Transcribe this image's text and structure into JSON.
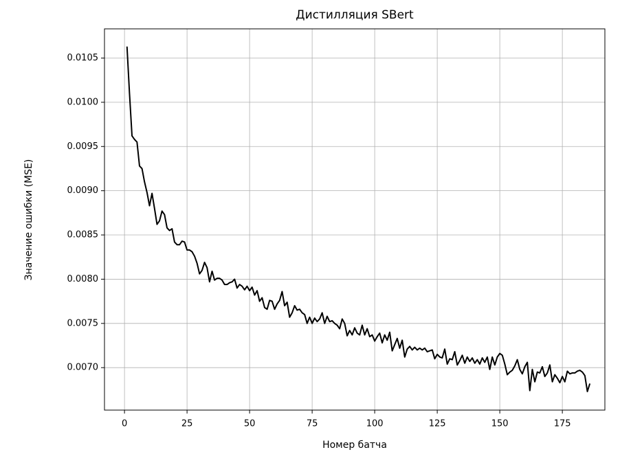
{
  "chart_data": {
    "type": "line",
    "title": "Дистилляция SBert",
    "x_label": "Номер батча",
    "y_label": "Значение ошибки (MSE)",
    "xlim": [
      -8,
      192
    ],
    "ylim": [
      0.00652,
      0.01083
    ],
    "xticks": [
      0,
      25,
      50,
      75,
      100,
      125,
      150,
      175
    ],
    "yticks": [
      {
        "value": 0.007,
        "label": "0.0070"
      },
      0.0075,
      {
        "value": 0.008,
        "label": "0.0080"
      },
      0.0085,
      {
        "value": 0.009,
        "label": "0.0090"
      },
      0.0095,
      {
        "value": 0.01,
        "label": "0.0100"
      },
      0.0105
    ],
    "grid": true,
    "series": [
      {
        "color": "#000000",
        "x": [
          1,
          2,
          3,
          4,
          5,
          6,
          7,
          8,
          9,
          10,
          11,
          12,
          13,
          14,
          15,
          16,
          17,
          18,
          19,
          20,
          21,
          22,
          23,
          24,
          25,
          26,
          27,
          28,
          29,
          30,
          31,
          32,
          33,
          34,
          35,
          36,
          37,
          38,
          39,
          40,
          41,
          42,
          43,
          44,
          45,
          46,
          47,
          48,
          49,
          50,
          51,
          52,
          53,
          54,
          55,
          56,
          57,
          58,
          59,
          60,
          61,
          62,
          63,
          64,
          65,
          66,
          67,
          68,
          69,
          70,
          71,
          72,
          73,
          74,
          75,
          76,
          77,
          78,
          79,
          80,
          81,
          82,
          83,
          84,
          85,
          86,
          87,
          88,
          89,
          90,
          91,
          92,
          93,
          94,
          95,
          96,
          97,
          98,
          99,
          100,
          101,
          102,
          103,
          104,
          105,
          106,
          107,
          108,
          109,
          110,
          111,
          112,
          113,
          114,
          115,
          116,
          117,
          118,
          119,
          120,
          121,
          122,
          123,
          124,
          125,
          126,
          127,
          128,
          129,
          130,
          131,
          132,
          133,
          134,
          135,
          136,
          137,
          138,
          139,
          140,
          141,
          142,
          143,
          144,
          145,
          146,
          147,
          148,
          149,
          150,
          151,
          152,
          153,
          154,
          155,
          156,
          157,
          158,
          159,
          160,
          161,
          162,
          163,
          164,
          165,
          166,
          167,
          168,
          169,
          170,
          171,
          172,
          173,
          174,
          175,
          176,
          177,
          178,
          179,
          180,
          181,
          182,
          183,
          184,
          185,
          186
        ],
        "values": [
          0.01063,
          0.0101,
          0.00962,
          0.00958,
          0.00955,
          0.00928,
          0.00925,
          0.0091,
          0.00898,
          0.00883,
          0.00897,
          0.0088,
          0.00862,
          0.00866,
          0.00877,
          0.00873,
          0.00858,
          0.00855,
          0.00857,
          0.00842,
          0.00839,
          0.00839,
          0.00843,
          0.00842,
          0.00833,
          0.00833,
          0.00831,
          0.00826,
          0.00818,
          0.00806,
          0.0081,
          0.00819,
          0.00813,
          0.00797,
          0.00809,
          0.00799,
          0.00801,
          0.00801,
          0.00799,
          0.00794,
          0.00794,
          0.00796,
          0.00797,
          0.008,
          0.0079,
          0.00794,
          0.00792,
          0.00788,
          0.00792,
          0.00787,
          0.00791,
          0.00782,
          0.00787,
          0.00775,
          0.00779,
          0.00768,
          0.00766,
          0.00776,
          0.00775,
          0.00766,
          0.00772,
          0.00776,
          0.00786,
          0.0077,
          0.00774,
          0.00757,
          0.00762,
          0.0077,
          0.00765,
          0.00766,
          0.00762,
          0.0076,
          0.0075,
          0.00757,
          0.0075,
          0.00756,
          0.00752,
          0.00755,
          0.00762,
          0.0075,
          0.00758,
          0.00752,
          0.00753,
          0.0075,
          0.00748,
          0.00744,
          0.00755,
          0.0075,
          0.00736,
          0.00742,
          0.00737,
          0.00745,
          0.00739,
          0.00737,
          0.00748,
          0.00737,
          0.00744,
          0.00735,
          0.00737,
          0.0073,
          0.00735,
          0.00739,
          0.00728,
          0.00737,
          0.00731,
          0.0074,
          0.00719,
          0.00726,
          0.00733,
          0.00722,
          0.00731,
          0.00712,
          0.00721,
          0.00724,
          0.0072,
          0.00723,
          0.0072,
          0.00722,
          0.0072,
          0.00722,
          0.00718,
          0.00719,
          0.0072,
          0.0071,
          0.00715,
          0.00712,
          0.00711,
          0.00721,
          0.00704,
          0.0071,
          0.00709,
          0.00718,
          0.00703,
          0.00708,
          0.00714,
          0.00705,
          0.00712,
          0.00707,
          0.00711,
          0.00705,
          0.00709,
          0.00704,
          0.00711,
          0.00706,
          0.00712,
          0.00698,
          0.00712,
          0.00703,
          0.00712,
          0.00716,
          0.00714,
          0.00704,
          0.00692,
          0.00695,
          0.00697,
          0.00702,
          0.00709,
          0.00698,
          0.00693,
          0.00701,
          0.00706,
          0.00674,
          0.00698,
          0.00684,
          0.00695,
          0.00694,
          0.00701,
          0.0069,
          0.00694,
          0.00703,
          0.00684,
          0.00692,
          0.00688,
          0.00683,
          0.0069,
          0.00684,
          0.00696,
          0.00693,
          0.00694,
          0.00694,
          0.00696,
          0.00697,
          0.00695,
          0.00691,
          0.00673,
          0.00682
        ]
      }
    ]
  }
}
